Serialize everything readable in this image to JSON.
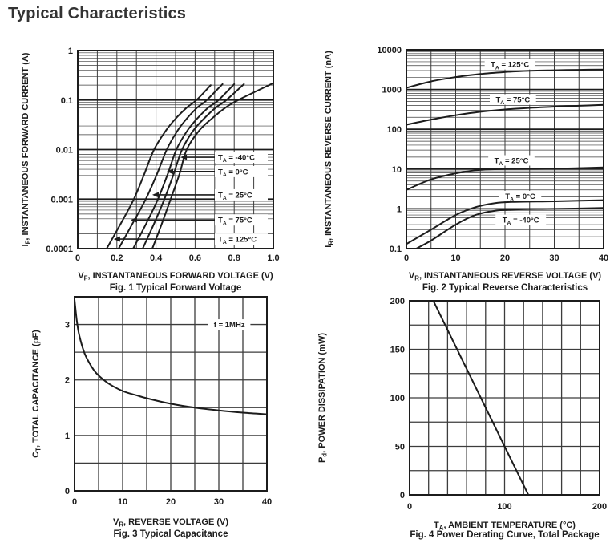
{
  "title": "Typical Characteristics",
  "ink_color": "#1c1c1c",
  "grid_color": "#3c3c3c",
  "chart_data": [
    {
      "id": "fig1",
      "type": "line",
      "caption": "Fig. 1  Typical Forward Voltage",
      "xlabel": "V_{F}, INSTANTANEOUS FORWARD VOLTAGE (V)",
      "ylabel": "I_{F}, INSTANTANEOUS FORWARD CURRENT (A)",
      "xlim": [
        0,
        1.0
      ],
      "xgrid_step": 0.1,
      "xticks": [
        {
          "v": 0,
          "label": "0"
        },
        {
          "v": 0.2,
          "label": "0.2"
        },
        {
          "v": 0.4,
          "label": "0.4"
        },
        {
          "v": 0.6,
          "label": "0.6"
        },
        {
          "v": 0.8,
          "label": "0.8"
        },
        {
          "v": 1.0,
          "label": "1.0"
        }
      ],
      "yscale": "log",
      "ylim": [
        0.0001,
        1
      ],
      "yticks": [
        {
          "v": 1,
          "label": "1"
        },
        {
          "v": 0.1,
          "label": "0.1"
        },
        {
          "v": 0.01,
          "label": "0.01"
        },
        {
          "v": 0.001,
          "label": "0.001"
        },
        {
          "v": 0.0001,
          "label": "0.0001"
        }
      ],
      "grid": true,
      "smooth": true,
      "series": [
        {
          "name": "T_{A} = 125°C",
          "points": [
            [
              0.148,
              0.0001
            ],
            [
              0.22,
              0.00032
            ],
            [
              0.287,
              0.001
            ],
            [
              0.34,
              0.0032
            ],
            [
              0.39,
              0.01
            ],
            [
              0.45,
              0.024
            ],
            [
              0.5,
              0.042
            ],
            [
              0.557,
              0.07
            ],
            [
              0.607,
              0.1
            ],
            [
              0.68,
              0.2
            ]
          ]
        },
        {
          "name": "T_{A} = 75°C",
          "points": [
            [
              0.209,
              0.0001
            ],
            [
              0.28,
              0.00032
            ],
            [
              0.348,
              0.001
            ],
            [
              0.405,
              0.0032
            ],
            [
              0.455,
              0.01
            ],
            [
              0.51,
              0.024
            ],
            [
              0.557,
              0.042
            ],
            [
              0.61,
              0.07
            ],
            [
              0.66,
              0.1
            ],
            [
              0.74,
              0.21
            ]
          ]
        },
        {
          "name": "T_{A} = 25°C",
          "points": [
            [
              0.283,
              0.0001
            ],
            [
              0.35,
              0.00032
            ],
            [
              0.41,
              0.001
            ],
            [
              0.46,
              0.0032
            ],
            [
              0.504,
              0.01
            ],
            [
              0.56,
              0.024
            ],
            [
              0.61,
              0.042
            ],
            [
              0.667,
              0.07
            ],
            [
              0.72,
              0.1
            ],
            [
              0.8,
              0.21
            ]
          ]
        },
        {
          "name": "T_{A} = 0°C",
          "points": [
            [
              0.332,
              0.0001
            ],
            [
              0.39,
              0.00032
            ],
            [
              0.443,
              0.001
            ],
            [
              0.49,
              0.0032
            ],
            [
              0.533,
              0.01
            ],
            [
              0.59,
              0.024
            ],
            [
              0.645,
              0.042
            ],
            [
              0.705,
              0.07
            ],
            [
              0.76,
              0.1
            ],
            [
              0.85,
              0.21
            ]
          ]
        },
        {
          "name": "T_{A} = -40°C",
          "points": [
            [
              0.381,
              0.0001
            ],
            [
              0.43,
              0.00032
            ],
            [
              0.475,
              0.001
            ],
            [
              0.52,
              0.0032
            ],
            [
              0.557,
              0.01
            ],
            [
              0.62,
              0.024
            ],
            [
              0.685,
              0.042
            ],
            [
              0.755,
              0.07
            ],
            [
              0.82,
              0.1
            ],
            [
              1.0,
              0.22
            ]
          ]
        }
      ],
      "leader_labels": [
        {
          "text": "T_{A} = -40°C",
          "y": 0.007,
          "tip": 0.525
        },
        {
          "text": "T_{A} = 0°C",
          "y": 0.0036,
          "tip": 0.455
        },
        {
          "text": "T_{A} = 25°C",
          "y": 0.00122,
          "tip": 0.381
        },
        {
          "text": "T_{A} = 75°C",
          "y": 0.00038,
          "tip": 0.27
        },
        {
          "text": "T_{A} = 125°C",
          "y": 0.000156,
          "tip": 0.184
        }
      ]
    },
    {
      "id": "fig2",
      "type": "line",
      "caption": "Fig. 2  Typical Reverse Characteristics",
      "xlabel": "V_{R}, INSTANTANEOUS REVERSE VOLTAGE (V)",
      "ylabel": "I_{R}, INSTANTANEOUS REVERSE CURRENT (nA)",
      "xlim": [
        0,
        40
      ],
      "xgrid_step": 5,
      "xticks": [
        {
          "v": 0,
          "label": "0"
        },
        {
          "v": 10,
          "label": "10"
        },
        {
          "v": 20,
          "label": "20"
        },
        {
          "v": 30,
          "label": "30"
        },
        {
          "v": 40,
          "label": "40"
        }
      ],
      "yscale": "log",
      "ylim": [
        0.1,
        10000
      ],
      "yticks": [
        {
          "v": 10000,
          "label": "10000"
        },
        {
          "v": 1000,
          "label": "1000"
        },
        {
          "v": 100,
          "label": "100"
        },
        {
          "v": 10,
          "label": "10"
        },
        {
          "v": 1,
          "label": "1"
        },
        {
          "v": 0.1,
          "label": "0.1"
        }
      ],
      "grid": true,
      "smooth": true,
      "series": [
        {
          "name": "T_{A} = 125°C",
          "points": [
            [
              0,
              1100
            ],
            [
              5,
              1600
            ],
            [
              10,
              2050
            ],
            [
              15,
              2450
            ],
            [
              20,
              2750
            ],
            [
              25,
              2950
            ],
            [
              30,
              3050
            ],
            [
              35,
              3120
            ],
            [
              40,
              3180
            ]
          ]
        },
        {
          "name": "T_{A} = 75°C",
          "points": [
            [
              0,
              130
            ],
            [
              5,
              175
            ],
            [
              10,
              225
            ],
            [
              15,
              275
            ],
            [
              20,
              315
            ],
            [
              25,
              345
            ],
            [
              30,
              370
            ],
            [
              35,
              390
            ],
            [
              40,
              410
            ]
          ]
        },
        {
          "name": "T_{A} = 25°C",
          "points": [
            [
              0,
              3
            ],
            [
              5,
              5.5
            ],
            [
              10,
              7.8
            ],
            [
              13,
              9
            ],
            [
              16,
              9.8
            ],
            [
              20,
              10
            ],
            [
              30,
              10.2
            ],
            [
              40,
              11
            ]
          ]
        },
        {
          "name": "T_{A} = 0°C",
          "points": [
            [
              0,
              0.13
            ],
            [
              5,
              0.3
            ],
            [
              10,
              0.7
            ],
            [
              14,
              1.1
            ],
            [
              18,
              1.4
            ],
            [
              22,
              1.5
            ],
            [
              30,
              1.55
            ],
            [
              40,
              1.65
            ]
          ]
        },
        {
          "name": "T_{A} = -40°C",
          "points": [
            [
              2,
              0.1
            ],
            [
              5,
              0.16
            ],
            [
              10,
              0.4
            ],
            [
              14,
              0.7
            ],
            [
              18,
              0.9
            ],
            [
              22,
              0.97
            ],
            [
              30,
              1.0
            ],
            [
              40,
              1.05
            ]
          ]
        }
      ],
      "point_labels": [
        {
          "text": "T_{A} = 125°C",
          "x": 21,
          "y": 4300
        },
        {
          "text": "T_{A} = 75°C",
          "x": 21.6,
          "y": 560
        },
        {
          "text": "T_{A} = 25°C",
          "x": 21.3,
          "y": 16.5
        },
        {
          "text": "T_{A} = 0°C",
          "x": 23.1,
          "y": 2.1
        },
        {
          "text": "T_{A} = -40°C",
          "x": 23.2,
          "y": 0.53
        }
      ]
    },
    {
      "id": "fig3",
      "type": "line",
      "caption": "Fig. 3  Typical Capacitance",
      "xlabel": "V_{R}, REVERSE VOLTAGE (V)",
      "ylabel": "C_{T}, TOTAL CAPACITANCE (pF)",
      "xlim": [
        0,
        40
      ],
      "xgrid_step": 5,
      "xticks": [
        {
          "v": 0,
          "label": "0"
        },
        {
          "v": 10,
          "label": "10"
        },
        {
          "v": 20,
          "label": "20"
        },
        {
          "v": 30,
          "label": "30"
        },
        {
          "v": 40,
          "label": "40"
        }
      ],
      "yscale": "linear",
      "ylim": [
        0,
        3.5
      ],
      "ygrid_step": 0.5,
      "yticks": [
        {
          "v": 3,
          "label": "3"
        },
        {
          "v": 2,
          "label": "2"
        },
        {
          "v": 1,
          "label": "1"
        },
        {
          "v": 0,
          "label": "0"
        }
      ],
      "grid": true,
      "smooth": true,
      "series": [
        {
          "name": "C_{T} at f = 1MHz",
          "points": [
            [
              0,
              3.45
            ],
            [
              0.5,
              3.05
            ],
            [
              1,
              2.8
            ],
            [
              2,
              2.5
            ],
            [
              3,
              2.32
            ],
            [
              4,
              2.18
            ],
            [
              5,
              2.08
            ],
            [
              7,
              1.94
            ],
            [
              10,
              1.8
            ],
            [
              13,
              1.72
            ],
            [
              15,
              1.67
            ],
            [
              20,
              1.57
            ],
            [
              25,
              1.5
            ],
            [
              30,
              1.45
            ],
            [
              35,
              1.41
            ],
            [
              40,
              1.38
            ]
          ]
        }
      ],
      "point_labels": [
        {
          "text": "f = 1MHz",
          "x": 32.2,
          "y": 3.0
        }
      ]
    },
    {
      "id": "fig4",
      "type": "line",
      "caption": "Fig. 4  Power Derating Curve, Total Package",
      "xlabel": "T_{A}, AMBIENT TEMPERATURE (°C)",
      "ylabel": "P_{d}, POWER DISSIPATION (mW)",
      "xlim": [
        0,
        200
      ],
      "xgrid_step": 20,
      "xticks": [
        {
          "v": 0,
          "label": "0"
        },
        {
          "v": 100,
          "label": "100"
        },
        {
          "v": 200,
          "label": "200"
        }
      ],
      "yscale": "linear",
      "ylim": [
        0,
        200
      ],
      "ygrid_step": 25,
      "yticks": [
        {
          "v": 200,
          "label": "200"
        },
        {
          "v": 150,
          "label": "150"
        },
        {
          "v": 100,
          "label": "100"
        },
        {
          "v": 50,
          "label": "50"
        },
        {
          "v": 0,
          "label": "0"
        }
      ],
      "grid": true,
      "smooth": false,
      "series": [
        {
          "name": "Power derating",
          "points": [
            [
              0,
              200
            ],
            [
              25,
              200
            ],
            [
              125,
              0
            ]
          ]
        }
      ]
    }
  ]
}
